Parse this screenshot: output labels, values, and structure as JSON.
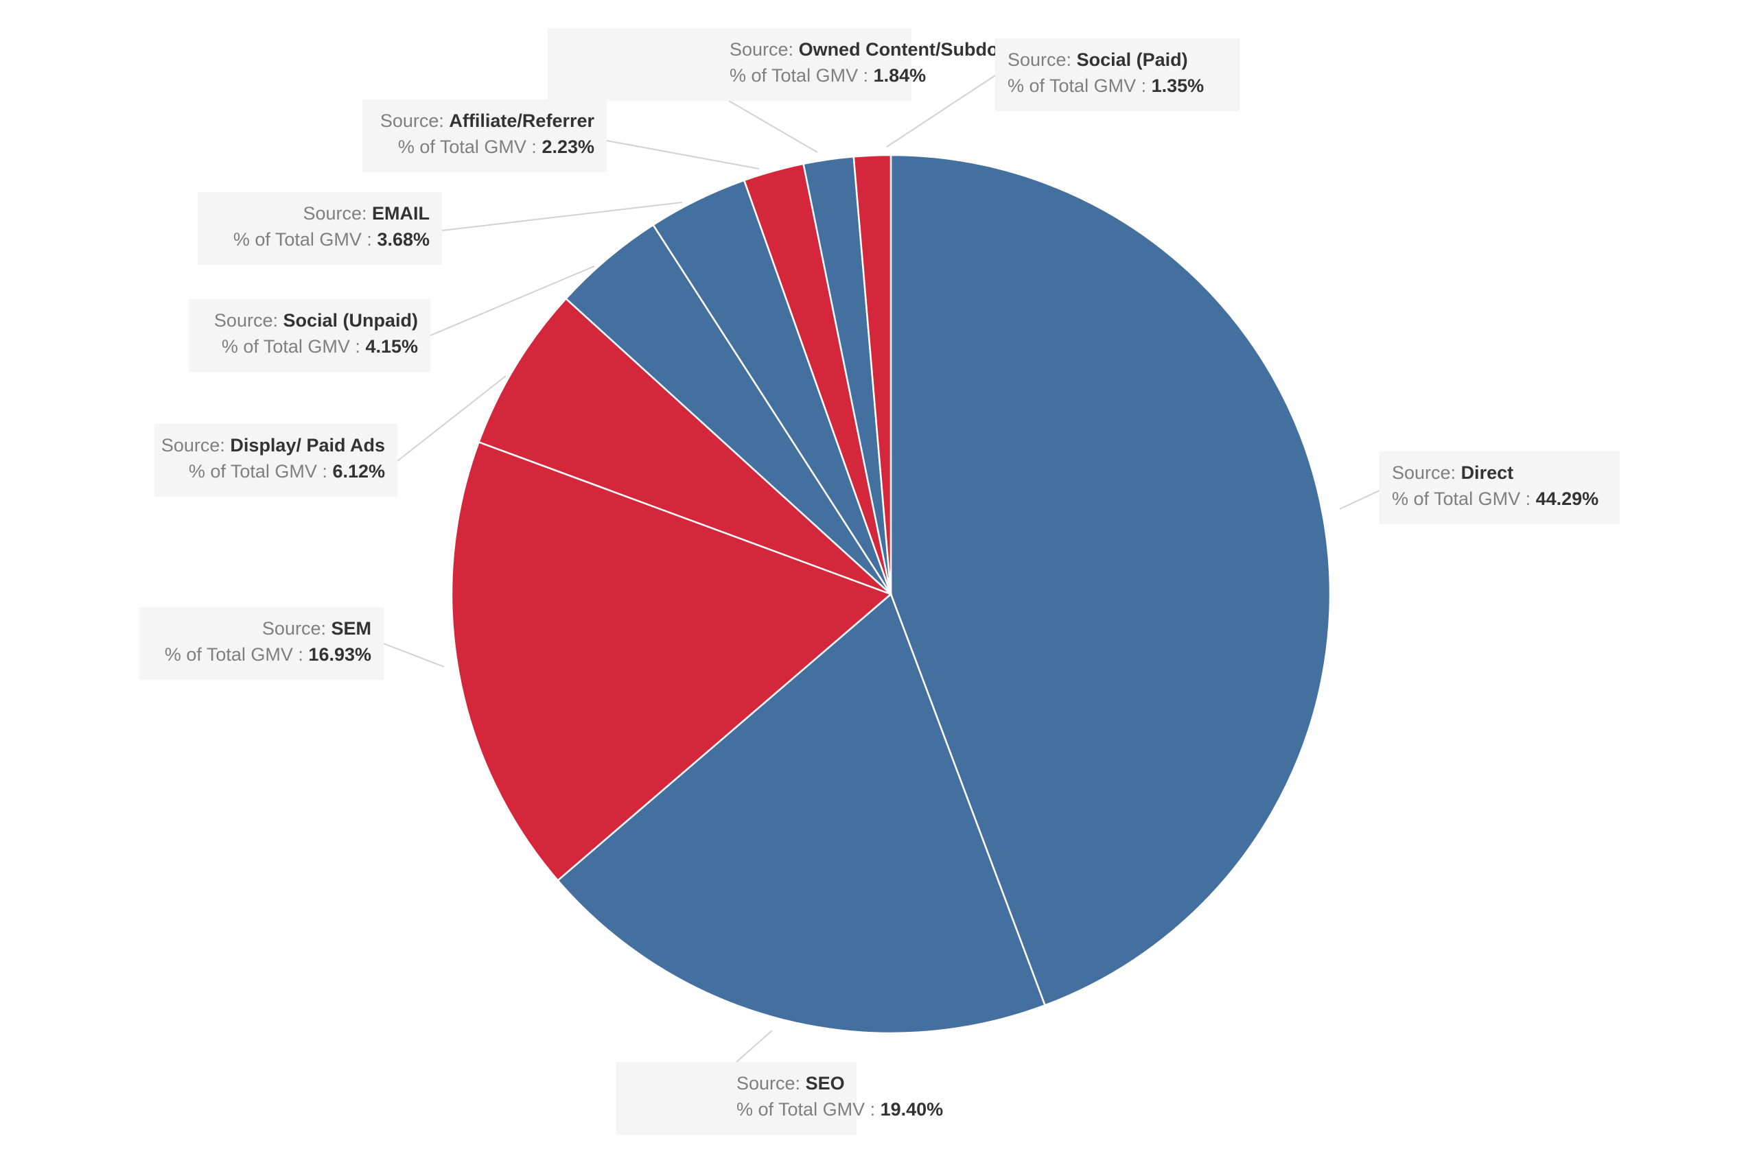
{
  "chart_data": {
    "type": "pie",
    "source_prefix": "Source: ",
    "measure_prefix": "% of Total GMV : ",
    "colors": {
      "blue": "#44709f",
      "red": "#d4273c"
    },
    "slices": [
      {
        "name": "Direct",
        "value": 44.29,
        "value_label": "44.29%",
        "color": "blue"
      },
      {
        "name": "SEO",
        "value": 19.4,
        "value_label": "19.40%",
        "color": "blue"
      },
      {
        "name": "SEM",
        "value": 16.93,
        "value_label": "16.93%",
        "color": "red"
      },
      {
        "name": "Display/ Paid Ads",
        "value": 6.12,
        "value_label": "6.12%",
        "color": "red"
      },
      {
        "name": "Social (Unpaid)",
        "value": 4.15,
        "value_label": "4.15%",
        "color": "blue"
      },
      {
        "name": "EMAIL",
        "value": 3.68,
        "value_label": "3.68%",
        "color": "blue"
      },
      {
        "name": "Affiliate/Referrer",
        "value": 2.23,
        "value_label": "2.23%",
        "color": "red"
      },
      {
        "name": "Owned Content/Subdomains",
        "value": 1.84,
        "value_label": "1.84%",
        "color": "blue"
      },
      {
        "name": "Social (Paid)",
        "value": 1.35,
        "value_label": "1.35%",
        "color": "red"
      }
    ]
  }
}
